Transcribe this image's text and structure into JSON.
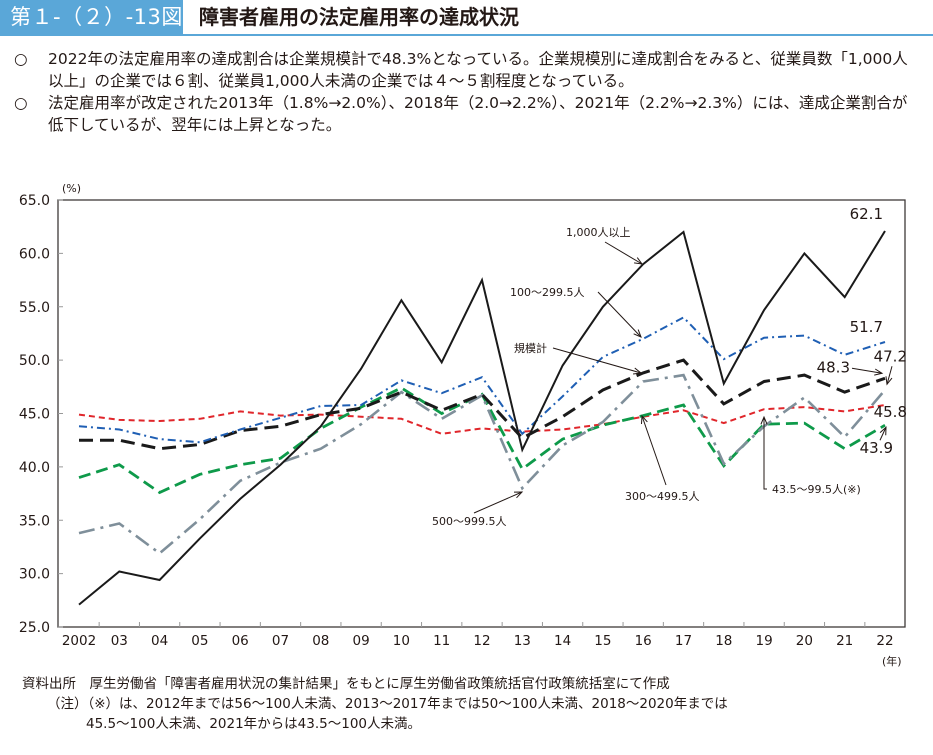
{
  "header": {
    "figure_number": "第１-（２）-13図",
    "title": "障害者雇用の法定雇用率の達成状況"
  },
  "summary": {
    "bullet_mark": "○",
    "items": [
      "2022年の法定雇用率の達成割合は企業規模計で48.3%となっている。企業規模別に達成割合をみると、従業員数「1,000人以上」の企業では６割、従業員1,000人未満の企業では４～５割程度となっている。",
      "法定雇用率が改定された2013年（1.8%→2.0%）、2018年（2.0→2.2%）、2021年（2.2%→2.3%）には、達成企業割合が低下しているが、翌年には上昇となった。"
    ]
  },
  "footer": {
    "source": "資料出所　厚生労働省「障害者雇用状況の集計結果」をもとに厚生労働省政策統括官付政策統括室にて作成",
    "note_line1": "（注）（※）は、2012年までは56～100人未満、2013～2017年までは50～100人未満、2018～2020年までは",
    "note_line2": "45.5～100人未満、2021年からは43.5～100人未満。"
  },
  "chart_data": {
    "type": "line",
    "title": "障害者雇用の法定雇用率の達成状況",
    "ylabel": "(%)",
    "xlabel": "(年)",
    "ylim": [
      25.0,
      65.0
    ],
    "yticks": [
      "25.0",
      "30.0",
      "35.0",
      "40.0",
      "45.0",
      "50.0",
      "55.0",
      "60.0",
      "65.0"
    ],
    "categories": [
      "2002",
      "03",
      "04",
      "05",
      "06",
      "07",
      "08",
      "09",
      "10",
      "11",
      "12",
      "13",
      "14",
      "15",
      "16",
      "17",
      "18",
      "19",
      "20",
      "21",
      "22"
    ],
    "grid": false,
    "series": [
      {
        "name": "1,000人以上",
        "color": "#1a1a1a",
        "style": "solid",
        "values": [
          27.1,
          30.2,
          29.4,
          33.3,
          37.0,
          40.2,
          43.8,
          49.2,
          55.6,
          49.8,
          57.5,
          41.6,
          49.5,
          55.0,
          59.0,
          62.0,
          47.8,
          54.7,
          60.0,
          55.9,
          62.1
        ],
        "end_label": "62.1"
      },
      {
        "name": "100～299.5人",
        "color": "#1f5fb4",
        "style": "dashdot",
        "values": [
          43.8,
          43.5,
          42.6,
          42.3,
          43.5,
          44.6,
          45.7,
          45.8,
          48.1,
          46.9,
          48.4,
          43.1,
          46.6,
          50.3,
          52.0,
          54.0,
          50.1,
          52.1,
          52.3,
          50.5,
          51.7
        ],
        "end_label": "51.7"
      },
      {
        "name": "規模計",
        "color": "#1a1a1a",
        "style": "longdash",
        "values": [
          42.5,
          42.5,
          41.7,
          42.1,
          43.4,
          43.8,
          44.9,
          45.5,
          47.0,
          45.3,
          46.8,
          42.7,
          44.7,
          47.2,
          48.8,
          50.0,
          45.9,
          48.0,
          48.6,
          47.0,
          48.3
        ],
        "end_label": "48.3"
      },
      {
        "name": "500～999.5人",
        "color": "#7f8f9a",
        "style": "dashdotlong",
        "values": [
          33.8,
          34.7,
          31.9,
          35.1,
          38.7,
          40.4,
          41.7,
          44.0,
          47.0,
          44.5,
          46.7,
          38.0,
          42.0,
          44.2,
          48.0,
          48.6,
          40.3,
          43.8,
          46.5,
          42.8,
          47.2
        ],
        "end_label": "47.2"
      },
      {
        "name": "300～499.5人",
        "color": "#0e9a4a",
        "style": "dashed",
        "values": [
          39.0,
          40.2,
          37.6,
          39.3,
          40.2,
          40.8,
          43.6,
          45.6,
          47.4,
          45.0,
          46.8,
          39.8,
          42.6,
          43.9,
          44.8,
          45.8,
          40.1,
          44.0,
          44.1,
          41.7,
          43.9
        ],
        "end_label": "43.9"
      },
      {
        "name": "43.5～99.5人(※)",
        "color": "#e0262b",
        "style": "shortdash",
        "values": [
          44.9,
          44.4,
          44.3,
          44.5,
          45.2,
          44.8,
          44.9,
          44.7,
          44.5,
          43.1,
          43.6,
          43.3,
          43.5,
          44.0,
          44.7,
          45.3,
          44.1,
          45.4,
          45.6,
          45.2,
          45.8
        ],
        "end_label": "45.8"
      }
    ],
    "annotations": [
      {
        "text": "1,000人以上",
        "series": "1,000人以上",
        "points_to": "16"
      },
      {
        "text": "100～299.5人",
        "series": "100～299.5人",
        "points_to": "16"
      },
      {
        "text": "規模計",
        "series": "規模計",
        "points_to": "16"
      },
      {
        "text": "500～999.5人",
        "series": "500～999.5人",
        "points_to": "13"
      },
      {
        "text": "300～499.5人",
        "series": "300～499.5人",
        "points_to": "16"
      },
      {
        "text": "43.5～99.5人(※)",
        "series": "43.5～99.5人(※)",
        "points_to": "19"
      }
    ]
  }
}
